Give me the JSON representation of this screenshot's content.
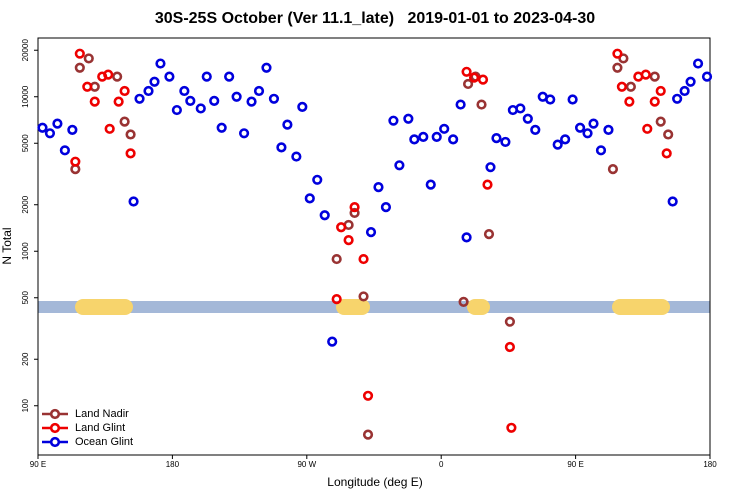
{
  "chart_data": {
    "type": "scatter",
    "title": "30S-25S October (Ver 11.1_late)   2019-01-01 to 2023-04-30",
    "x_label": "Longitude (deg E)",
    "y_label": "N Total",
    "yscale": "log",
    "xlim": [
      90,
      540
    ],
    "ylim": [
      48,
      24000
    ],
    "xticks": [
      {
        "value": 90,
        "label": "90 E"
      },
      {
        "value": 180,
        "label": "180"
      },
      {
        "value": 270,
        "label": "90 W"
      },
      {
        "value": 360,
        "label": "0"
      },
      {
        "value": 450,
        "label": "90 E"
      },
      {
        "value": 540,
        "label": "180"
      }
    ],
    "yticks": [
      100,
      200,
      500,
      1000,
      2000,
      5000,
      10000,
      20000
    ],
    "legend": "bottom-left",
    "series": [
      {
        "name": "Land Nadir",
        "color": "#993333",
        "x": [
          115,
          118,
          124,
          128,
          143,
          148,
          152,
          290,
          298,
          302,
          308,
          311,
          375,
          378,
          383,
          387,
          392,
          406,
          475,
          478,
          482,
          487,
          503,
          507,
          512
        ],
        "values": [
          3400,
          15400,
          17700,
          11600,
          13500,
          6900,
          5700,
          890,
          1480,
          1770,
          510,
          65,
          470,
          12100,
          13500,
          8900,
          1290,
          350,
          3400,
          15400,
          17700,
          11600,
          13500,
          6900,
          5700
        ]
      },
      {
        "name": "Land Glint",
        "color": "#ee0000",
        "x": [
          115,
          118,
          123,
          128,
          133,
          137,
          138,
          144,
          148,
          152,
          290,
          293,
          298,
          302,
          308,
          311,
          377,
          382,
          388,
          391,
          406,
          407,
          478,
          481,
          486,
          492,
          497,
          498,
          503,
          507,
          511
        ],
        "values": [
          3800,
          19000,
          11600,
          9300,
          13500,
          13900,
          6200,
          9300,
          10900,
          4300,
          490,
          1430,
          1180,
          1930,
          890,
          116,
          14500,
          13300,
          12900,
          2700,
          240,
          72,
          19000,
          11600,
          9300,
          13500,
          13900,
          6200,
          9300,
          10900,
          4300
        ]
      },
      {
        "name": "Ocean Glint",
        "color": "#0000dd",
        "x": [
          93,
          98,
          103,
          108,
          113,
          154,
          158,
          164,
          168,
          172,
          178,
          183,
          188,
          192,
          199,
          203,
          208,
          213,
          218,
          223,
          228,
          233,
          238,
          243,
          248,
          253,
          257,
          263,
          267,
          272,
          277,
          282,
          287,
          313,
          318,
          323,
          328,
          332,
          338,
          342,
          348,
          353,
          357,
          362,
          368,
          373,
          377,
          393,
          397,
          403,
          408,
          413,
          418,
          423,
          428,
          433,
          438,
          443,
          448,
          453,
          458,
          462,
          467,
          472,
          515,
          518,
          523,
          527,
          532,
          538
        ],
        "values": [
          6300,
          5800,
          6700,
          4500,
          6100,
          2100,
          9700,
          10900,
          12500,
          16400,
          13500,
          8200,
          10900,
          9400,
          8400,
          13500,
          9400,
          6300,
          13500,
          10000,
          5800,
          9300,
          10900,
          15400,
          9700,
          4700,
          6600,
          4100,
          8600,
          2200,
          2900,
          1710,
          260,
          1330,
          2600,
          1930,
          7000,
          3600,
          7200,
          5300,
          5500,
          2700,
          5500,
          6200,
          5300,
          8900,
          1230,
          3500,
          5400,
          5100,
          8200,
          8400,
          7200,
          6100,
          10000,
          9600,
          4900,
          5300,
          9600,
          6300,
          5800,
          6700,
          4500,
          6100,
          2100,
          9700,
          10900,
          12500,
          16400,
          13500
        ]
      }
    ]
  }
}
